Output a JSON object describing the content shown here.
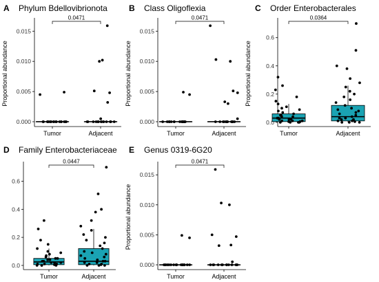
{
  "chart_data": [
    {
      "type": "box",
      "letter": "A",
      "title": "Phylum Bdellovibrionota",
      "ylabel": "Proportional abundance",
      "categories": [
        "Tumor",
        "Adjacent"
      ],
      "ylim": [
        -0.0008,
        0.0172
      ],
      "yticks": [
        0.0,
        0.005,
        0.01,
        0.015
      ],
      "ytick_labels": [
        "0.000",
        "0.005",
        "0.010",
        "0.015"
      ],
      "p_value": "0.0471",
      "box_color": "#1aa3b3",
      "series": [
        {
          "name": "Tumor",
          "box": {
            "q1": 0,
            "median": 0,
            "q3": 0,
            "whisker_low": 0,
            "whisker_high": 0
          },
          "points": [
            0.0049,
            0.0045,
            0,
            0,
            0,
            0,
            0,
            0,
            0,
            0,
            0,
            0,
            0,
            0,
            0,
            0,
            0,
            0,
            0,
            0
          ]
        },
        {
          "name": "Adjacent",
          "box": {
            "q1": 0,
            "median": 0,
            "q3": 0,
            "whisker_low": 0,
            "whisker_high": 0
          },
          "points": [
            0.0159,
            0.0102,
            0.01,
            0.0051,
            0.0048,
            0.0032,
            0.0005,
            0,
            0,
            0,
            0,
            0,
            0,
            0,
            0,
            0,
            0,
            0,
            0,
            0,
            0,
            0
          ]
        }
      ]
    },
    {
      "type": "box",
      "letter": "B",
      "title": "Class Oligoflexia",
      "ylabel": "Proportional abundance",
      "categories": [
        "Tumor",
        "Adjacent"
      ],
      "ylim": [
        -0.0008,
        0.0172
      ],
      "yticks": [
        0.0,
        0.005,
        0.01,
        0.015
      ],
      "ytick_labels": [
        "0.000",
        "0.005",
        "0.010",
        "0.015"
      ],
      "p_value": "0.0471",
      "box_color": "#1aa3b3",
      "series": [
        {
          "name": "Tumor",
          "box": {
            "q1": 0,
            "median": 0,
            "q3": 0,
            "whisker_low": 0,
            "whisker_high": 0
          },
          "points": [
            0.0049,
            0.0045,
            0,
            0,
            0,
            0,
            0,
            0,
            0,
            0,
            0,
            0,
            0,
            0,
            0,
            0,
            0,
            0,
            0,
            0
          ]
        },
        {
          "name": "Adjacent",
          "box": {
            "q1": 0,
            "median": 0,
            "q3": 0,
            "whisker_low": 0,
            "whisker_high": 0
          },
          "points": [
            0.0159,
            0.0103,
            0.01,
            0.0051,
            0.0048,
            0.0033,
            0.003,
            0.0005,
            0,
            0,
            0,
            0,
            0,
            0,
            0,
            0,
            0,
            0,
            0,
            0,
            0
          ]
        }
      ]
    },
    {
      "type": "box",
      "letter": "C",
      "title": "Order Enterobacterales",
      "ylabel": "Proportional abundance",
      "categories": [
        "Tumor",
        "Adjacent"
      ],
      "ylim": [
        -0.03,
        0.74
      ],
      "yticks": [
        0.0,
        0.2,
        0.4,
        0.6
      ],
      "ytick_labels": [
        "0.0",
        "0.2",
        "0.4",
        "0.6"
      ],
      "p_value": "0.0364",
      "box_color": "#1aa3b3",
      "series": [
        {
          "name": "Tumor",
          "box": {
            "q1": 0.005,
            "median": 0.03,
            "q3": 0.06,
            "whisker_low": 0.0,
            "whisker_high": 0.13
          },
          "points": [
            0.32,
            0.26,
            0.23,
            0.18,
            0.15,
            0.13,
            0.11,
            0.1,
            0.09,
            0.08,
            0.07,
            0.06,
            0.05,
            0.05,
            0.04,
            0.04,
            0.03,
            0.03,
            0.02,
            0.02,
            0.02,
            0.01,
            0.01,
            0.01,
            0.005,
            0.005,
            0.0,
            0.0,
            0.0,
            0.0
          ]
        },
        {
          "name": "Adjacent",
          "box": {
            "q1": 0.01,
            "median": 0.04,
            "q3": 0.12,
            "whisker_low": 0.0,
            "whisker_high": 0.26
          },
          "points": [
            0.7,
            0.51,
            0.4,
            0.38,
            0.31,
            0.28,
            0.25,
            0.22,
            0.2,
            0.18,
            0.16,
            0.14,
            0.12,
            0.1,
            0.09,
            0.08,
            0.07,
            0.06,
            0.05,
            0.04,
            0.03,
            0.03,
            0.02,
            0.02,
            0.01,
            0.01,
            0.005,
            0.0,
            0.0,
            0.0
          ]
        }
      ]
    },
    {
      "type": "box",
      "letter": "D",
      "title": "Family Enterobacteriaceae",
      "ylabel": "Proportional abundance",
      "categories": [
        "Tumor",
        "Adjacent"
      ],
      "ylim": [
        -0.03,
        0.74
      ],
      "yticks": [
        0.0,
        0.2,
        0.4,
        0.6
      ],
      "ytick_labels": [
        "0.0",
        "0.2",
        "0.4",
        "0.6"
      ],
      "p_value": "0.0447",
      "box_color": "#1aa3b3",
      "series": [
        {
          "name": "Tumor",
          "box": {
            "q1": 0.005,
            "median": 0.025,
            "q3": 0.05,
            "whisker_low": 0.0,
            "whisker_high": 0.12
          },
          "points": [
            0.32,
            0.26,
            0.18,
            0.15,
            0.12,
            0.1,
            0.09,
            0.08,
            0.07,
            0.06,
            0.05,
            0.05,
            0.04,
            0.04,
            0.03,
            0.03,
            0.02,
            0.02,
            0.02,
            0.01,
            0.01,
            0.01,
            0.005,
            0.005,
            0.0,
            0.0,
            0.0,
            0.0
          ]
        },
        {
          "name": "Adjacent",
          "box": {
            "q1": 0.005,
            "median": 0.03,
            "q3": 0.12,
            "whisker_low": 0.0,
            "whisker_high": 0.26
          },
          "points": [
            0.7,
            0.51,
            0.4,
            0.38,
            0.32,
            0.28,
            0.25,
            0.22,
            0.2,
            0.18,
            0.16,
            0.14,
            0.12,
            0.1,
            0.09,
            0.08,
            0.07,
            0.06,
            0.05,
            0.04,
            0.03,
            0.03,
            0.02,
            0.02,
            0.01,
            0.01,
            0.005,
            0.0,
            0.0,
            0.0
          ]
        }
      ]
    },
    {
      "type": "box",
      "letter": "E",
      "title": "Genus 0319-6G20",
      "ylabel": "Proportional abundance",
      "categories": [
        "Tumor",
        "Adjacent"
      ],
      "ylim": [
        -0.0008,
        0.0172
      ],
      "yticks": [
        0.0,
        0.005,
        0.01,
        0.015
      ],
      "ytick_labels": [
        "0.000",
        "0.005",
        "0.010",
        "0.015"
      ],
      "p_value": "0.0471",
      "box_color": "#1aa3b3",
      "series": [
        {
          "name": "Tumor",
          "box": {
            "q1": 0,
            "median": 0,
            "q3": 0,
            "whisker_low": 0,
            "whisker_high": 0
          },
          "points": [
            0.0049,
            0.0045,
            0,
            0,
            0,
            0,
            0,
            0,
            0,
            0,
            0,
            0,
            0,
            0,
            0,
            0,
            0,
            0,
            0,
            0
          ]
        },
        {
          "name": "Adjacent",
          "box": {
            "q1": 0,
            "median": 0,
            "q3": 0,
            "whisker_low": 0,
            "whisker_high": 0
          },
          "points": [
            0.0159,
            0.0103,
            0.01,
            0.005,
            0.0047,
            0.0033,
            0.0032,
            0.0005,
            0,
            0,
            0,
            0,
            0,
            0,
            0,
            0,
            0,
            0,
            0,
            0,
            0
          ]
        }
      ]
    }
  ]
}
